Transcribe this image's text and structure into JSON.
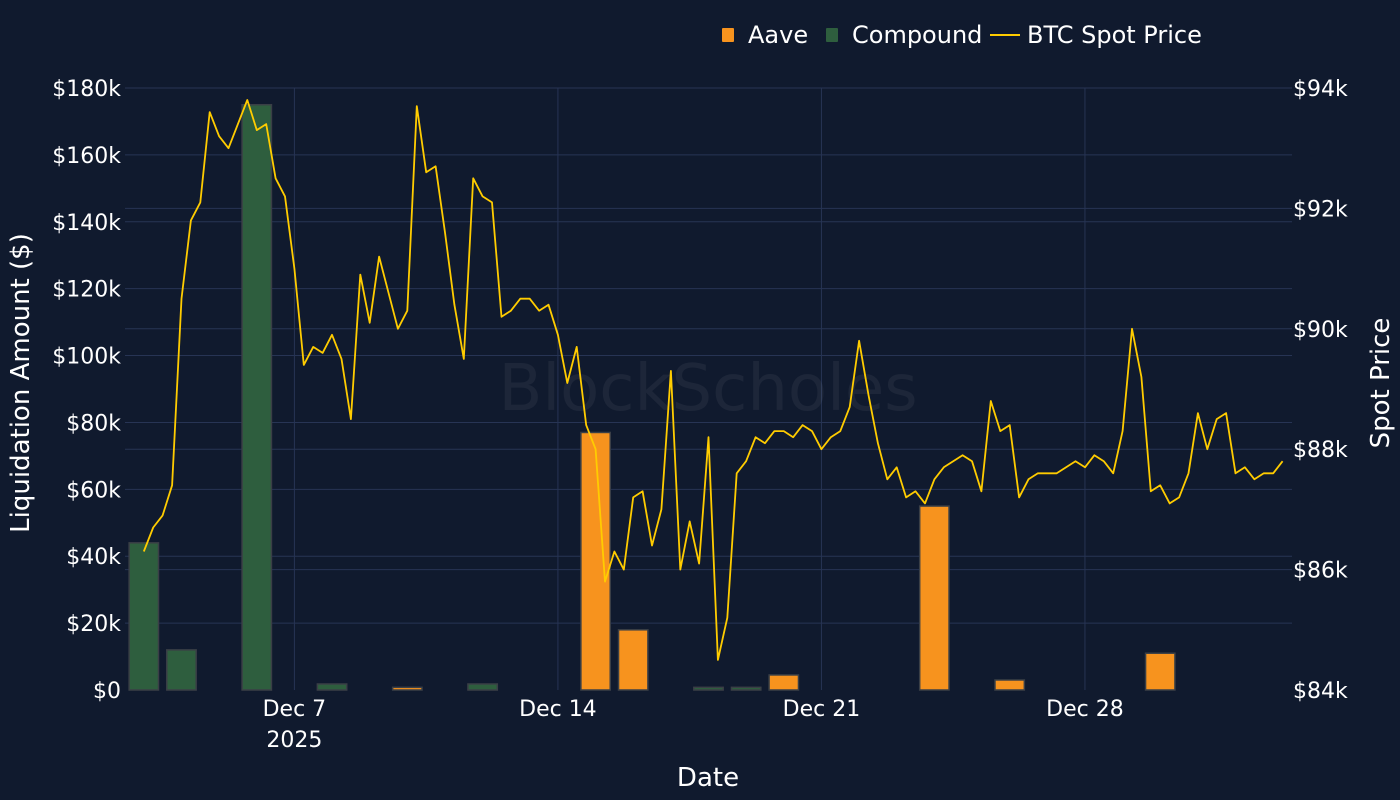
{
  "watermark": "BlockScholes",
  "colors": {
    "background": "#101a2e",
    "grid": "#273454",
    "aave": "#f7931e",
    "compound": "#2e5e3e",
    "bar_outline": "#3a3f46",
    "btc": "#ffcc00",
    "text": "#ffffff"
  },
  "chart_data": {
    "type": "bar",
    "xlabel": "Date",
    "ylabel": "Liquidation Amount ($)",
    "y2label": "Spot Price",
    "ylim": [
      0,
      180000
    ],
    "y2lim": [
      84000,
      94000
    ],
    "x_range": [
      "2025-12-02T12:00",
      "2026-01-02T12:00"
    ],
    "x_ticks": [
      {
        "date": "2025-12-07",
        "label": "Dec 7",
        "sublabel": "2025"
      },
      {
        "date": "2025-12-14",
        "label": "Dec 14",
        "sublabel": ""
      },
      {
        "date": "2025-12-21",
        "label": "Dec 21",
        "sublabel": ""
      },
      {
        "date": "2025-12-28",
        "label": "Dec 28",
        "sublabel": ""
      }
    ],
    "y_ticks": [
      {
        "value": 0,
        "label": "$0"
      },
      {
        "value": 20000,
        "label": "$20k"
      },
      {
        "value": 40000,
        "label": "$40k"
      },
      {
        "value": 60000,
        "label": "$60k"
      },
      {
        "value": 80000,
        "label": "$80k"
      },
      {
        "value": 100000,
        "label": "$100k"
      },
      {
        "value": 120000,
        "label": "$120k"
      },
      {
        "value": 140000,
        "label": "$140k"
      },
      {
        "value": 160000,
        "label": "$160k"
      },
      {
        "value": 180000,
        "label": "$180k"
      }
    ],
    "y2_ticks": [
      {
        "value": 84000,
        "label": "$84k"
      },
      {
        "value": 86000,
        "label": "$86k"
      },
      {
        "value": 88000,
        "label": "$88k"
      },
      {
        "value": 90000,
        "label": "$90k"
      },
      {
        "value": 92000,
        "label": "$92k"
      },
      {
        "value": 94000,
        "label": "$94k"
      }
    ],
    "legend": {
      "position": "top-right",
      "items": [
        {
          "label": "Aave",
          "kind": "bar",
          "series": "aave"
        },
        {
          "label": "Compound",
          "kind": "bar",
          "series": "compound"
        },
        {
          "label": "BTC Spot Price",
          "kind": "line",
          "series": "btc"
        }
      ]
    },
    "categories": [
      "2025-12-03",
      "2025-12-04",
      "2025-12-05",
      "2025-12-06",
      "2025-12-07",
      "2025-12-08",
      "2025-12-09",
      "2025-12-10",
      "2025-12-11",
      "2025-12-12",
      "2025-12-13",
      "2025-12-14",
      "2025-12-15",
      "2025-12-16",
      "2025-12-17",
      "2025-12-18",
      "2025-12-19",
      "2025-12-20",
      "2025-12-21",
      "2025-12-22",
      "2025-12-23",
      "2025-12-24",
      "2025-12-25",
      "2025-12-26",
      "2025-12-27",
      "2025-12-28",
      "2025-12-29",
      "2025-12-30",
      "2025-12-31",
      "2026-01-01",
      "2026-01-02"
    ],
    "series": [
      {
        "name": "Compound",
        "key": "compound",
        "values": [
          44000,
          12000,
          0,
          175000,
          0,
          1800,
          0,
          0,
          0,
          1800,
          0,
          0,
          0,
          0,
          0,
          800,
          800,
          0,
          0,
          0,
          0,
          0,
          0,
          0,
          0,
          0,
          0,
          0,
          0,
          0,
          0
        ]
      },
      {
        "name": "Aave",
        "key": "aave",
        "values": [
          0,
          0,
          0,
          0,
          0,
          0,
          0,
          800,
          0,
          0,
          0,
          0,
          77000,
          18000,
          0,
          0,
          0,
          4500,
          0,
          0,
          0,
          55000,
          0,
          3000,
          0,
          0,
          0,
          11000,
          0,
          0,
          0
        ]
      }
    ],
    "btc": {
      "name": "BTC Spot Price",
      "points": [
        [
          "2025-12-03T00:00",
          86300
        ],
        [
          "2025-12-03T06:00",
          86700
        ],
        [
          "2025-12-03T12:00",
          86900
        ],
        [
          "2025-12-03T18:00",
          87400
        ],
        [
          "2025-12-04T00:00",
          90500
        ],
        [
          "2025-12-04T06:00",
          91800
        ],
        [
          "2025-12-04T12:00",
          92100
        ],
        [
          "2025-12-04T18:00",
          93600
        ],
        [
          "2025-12-05T00:00",
          93200
        ],
        [
          "2025-12-05T06:00",
          93000
        ],
        [
          "2025-12-05T12:00",
          93400
        ],
        [
          "2025-12-05T18:00",
          93800
        ],
        [
          "2025-12-06T00:00",
          93300
        ],
        [
          "2025-12-06T06:00",
          93400
        ],
        [
          "2025-12-06T12:00",
          92500
        ],
        [
          "2025-12-06T18:00",
          92200
        ],
        [
          "2025-12-07T00:00",
          91000
        ],
        [
          "2025-12-07T06:00",
          89400
        ],
        [
          "2025-12-07T12:00",
          89700
        ],
        [
          "2025-12-07T18:00",
          89600
        ],
        [
          "2025-12-08T00:00",
          89900
        ],
        [
          "2025-12-08T06:00",
          89500
        ],
        [
          "2025-12-08T12:00",
          88500
        ],
        [
          "2025-12-08T18:00",
          90900
        ],
        [
          "2025-12-09T00:00",
          90100
        ],
        [
          "2025-12-09T06:00",
          91200
        ],
        [
          "2025-12-09T12:00",
          90600
        ],
        [
          "2025-12-09T18:00",
          90000
        ],
        [
          "2025-12-10T00:00",
          90300
        ],
        [
          "2025-12-10T06:00",
          93700
        ],
        [
          "2025-12-10T12:00",
          92600
        ],
        [
          "2025-12-10T18:00",
          92700
        ],
        [
          "2025-12-11T00:00",
          91600
        ],
        [
          "2025-12-11T06:00",
          90400
        ],
        [
          "2025-12-11T12:00",
          89500
        ],
        [
          "2025-12-11T18:00",
          92500
        ],
        [
          "2025-12-12T00:00",
          92200
        ],
        [
          "2025-12-12T06:00",
          92100
        ],
        [
          "2025-12-12T12:00",
          90200
        ],
        [
          "2025-12-12T18:00",
          90300
        ],
        [
          "2025-12-13T00:00",
          90500
        ],
        [
          "2025-12-13T06:00",
          90500
        ],
        [
          "2025-12-13T12:00",
          90300
        ],
        [
          "2025-12-13T18:00",
          90400
        ],
        [
          "2025-12-14T00:00",
          89900
        ],
        [
          "2025-12-14T06:00",
          89100
        ],
        [
          "2025-12-14T12:00",
          89700
        ],
        [
          "2025-12-14T18:00",
          88400
        ],
        [
          "2025-12-15T00:00",
          88000
        ],
        [
          "2025-12-15T06:00",
          85800
        ],
        [
          "2025-12-15T12:00",
          86300
        ],
        [
          "2025-12-15T18:00",
          86000
        ],
        [
          "2025-12-16T00:00",
          87200
        ],
        [
          "2025-12-16T06:00",
          87300
        ],
        [
          "2025-12-16T12:00",
          86400
        ],
        [
          "2025-12-16T18:00",
          87000
        ],
        [
          "2025-12-17T00:00",
          89300
        ],
        [
          "2025-12-17T06:00",
          86000
        ],
        [
          "2025-12-17T12:00",
          86800
        ],
        [
          "2025-12-17T18:00",
          86100
        ],
        [
          "2025-12-18T00:00",
          88200
        ],
        [
          "2025-12-18T06:00",
          84500
        ],
        [
          "2025-12-18T12:00",
          85200
        ],
        [
          "2025-12-18T18:00",
          87600
        ],
        [
          "2025-12-19T00:00",
          87800
        ],
        [
          "2025-12-19T06:00",
          88200
        ],
        [
          "2025-12-19T12:00",
          88100
        ],
        [
          "2025-12-19T18:00",
          88300
        ],
        [
          "2025-12-20T00:00",
          88300
        ],
        [
          "2025-12-20T06:00",
          88200
        ],
        [
          "2025-12-20T12:00",
          88400
        ],
        [
          "2025-12-20T18:00",
          88300
        ],
        [
          "2025-12-21T00:00",
          88000
        ],
        [
          "2025-12-21T06:00",
          88200
        ],
        [
          "2025-12-21T12:00",
          88300
        ],
        [
          "2025-12-21T18:00",
          88700
        ],
        [
          "2025-12-22T00:00",
          89800
        ],
        [
          "2025-12-22T06:00",
          88900
        ],
        [
          "2025-12-22T12:00",
          88100
        ],
        [
          "2025-12-22T18:00",
          87500
        ],
        [
          "2025-12-23T00:00",
          87700
        ],
        [
          "2025-12-23T06:00",
          87200
        ],
        [
          "2025-12-23T12:00",
          87300
        ],
        [
          "2025-12-23T18:00",
          87100
        ],
        [
          "2025-12-24T00:00",
          87500
        ],
        [
          "2025-12-24T06:00",
          87700
        ],
        [
          "2025-12-24T12:00",
          87800
        ],
        [
          "2025-12-24T18:00",
          87900
        ],
        [
          "2025-12-25T00:00",
          87800
        ],
        [
          "2025-12-25T06:00",
          87300
        ],
        [
          "2025-12-25T12:00",
          88800
        ],
        [
          "2025-12-25T18:00",
          88300
        ],
        [
          "2025-12-26T00:00",
          88400
        ],
        [
          "2025-12-26T06:00",
          87200
        ],
        [
          "2025-12-26T12:00",
          87500
        ],
        [
          "2025-12-26T18:00",
          87600
        ],
        [
          "2025-12-27T00:00",
          87600
        ],
        [
          "2025-12-27T06:00",
          87600
        ],
        [
          "2025-12-27T12:00",
          87700
        ],
        [
          "2025-12-27T18:00",
          87800
        ],
        [
          "2025-12-28T00:00",
          87700
        ],
        [
          "2025-12-28T06:00",
          87900
        ],
        [
          "2025-12-28T12:00",
          87800
        ],
        [
          "2025-12-28T18:00",
          87600
        ],
        [
          "2025-12-29T00:00",
          88300
        ],
        [
          "2025-12-29T06:00",
          90000
        ],
        [
          "2025-12-29T12:00",
          89200
        ],
        [
          "2025-12-29T18:00",
          87300
        ],
        [
          "2025-12-30T00:00",
          87400
        ],
        [
          "2025-12-30T06:00",
          87100
        ],
        [
          "2025-12-30T12:00",
          87200
        ],
        [
          "2025-12-30T18:00",
          87600
        ],
        [
          "2025-12-31T00:00",
          88600
        ],
        [
          "2025-12-31T06:00",
          88000
        ],
        [
          "2025-12-31T12:00",
          88500
        ],
        [
          "2025-12-31T18:00",
          88600
        ],
        [
          "2026-01-01T00:00",
          87600
        ],
        [
          "2026-01-01T06:00",
          87700
        ],
        [
          "2026-01-01T12:00",
          87500
        ],
        [
          "2026-01-01T18:00",
          87600
        ],
        [
          "2026-01-02T00:00",
          87600
        ],
        [
          "2026-01-02T06:00",
          87800
        ]
      ]
    }
  }
}
